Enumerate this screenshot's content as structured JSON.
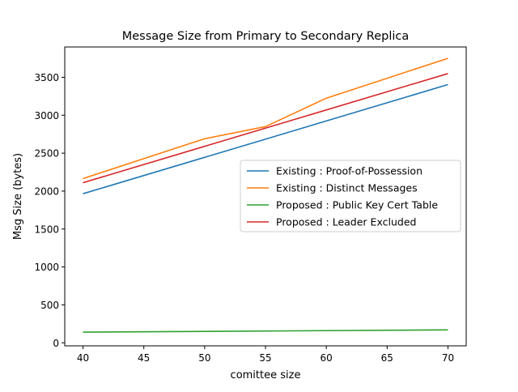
{
  "chart_data": {
    "type": "line",
    "title": "Message Size from Primary to Secondary Replica",
    "xlabel": "comittee size",
    "ylabel": "Msg Size (bytes)",
    "xlim": [
      38.5,
      71.5
    ],
    "ylim": [
      -40,
      3900
    ],
    "xticks": [
      40,
      45,
      50,
      55,
      60,
      65,
      70
    ],
    "yticks": [
      0,
      500,
      1000,
      1500,
      2000,
      2500,
      3000,
      3500
    ],
    "grid": false,
    "legend_position": "center-right",
    "series": [
      {
        "name": "Existing : Proof-of-Possession",
        "color": "#1f77b4",
        "x": [
          40,
          70
        ],
        "y": [
          1965,
          3405
        ]
      },
      {
        "name": "Existing : Distinct Messages",
        "color": "#ff7f0e",
        "x": [
          40,
          50,
          55,
          60,
          70
        ],
        "y": [
          2165,
          2690,
          2850,
          3225,
          3750
        ]
      },
      {
        "name": "Proposed : Public Key Cert Table",
        "color": "#2ca02c",
        "x": [
          40,
          70
        ],
        "y": [
          140,
          170
        ]
      },
      {
        "name": "Proposed : Leader Excluded",
        "color": "#d62728",
        "x": [
          40,
          70
        ],
        "y": [
          2110,
          3550
        ]
      }
    ]
  }
}
